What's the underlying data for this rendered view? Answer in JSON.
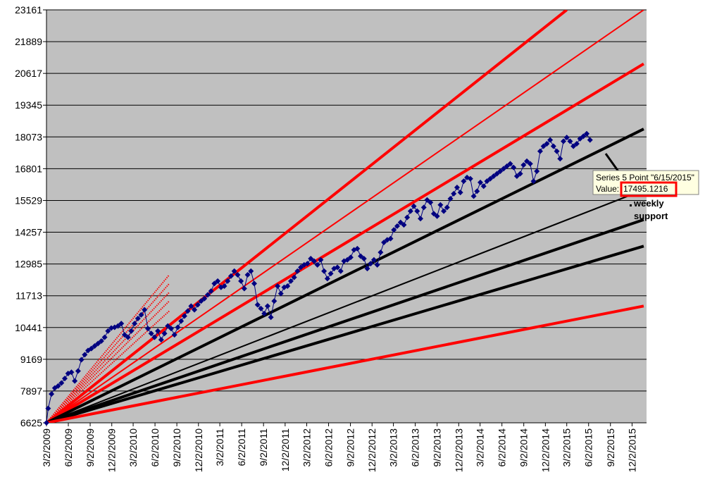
{
  "chart_data": {
    "type": "line",
    "title": "",
    "xlabel": "",
    "ylabel": "",
    "ylim": [
      6625,
      23161
    ],
    "xlim": [
      "3/2/2009",
      "2/1/2016"
    ],
    "y_ticks": [
      "6625",
      "7897",
      "9169",
      "10441",
      "11713",
      "12985",
      "14257",
      "15529",
      "16801",
      "18073",
      "19345",
      "20617",
      "21889",
      "23161"
    ],
    "x_ticks": [
      "3/2/2009",
      "6/2/2009",
      "9/2/2009",
      "12/2/2009",
      "3/2/2010",
      "6/2/2010",
      "9/2/2010",
      "12/2/2010",
      "3/2/2011",
      "6/2/2011",
      "9/2/2011",
      "12/2/2011",
      "3/2/2012",
      "6/2/2012",
      "9/2/2012",
      "12/2/2012",
      "3/2/2013",
      "6/2/2013",
      "9/2/2013",
      "12/2/2013",
      "3/2/2014",
      "6/2/2014",
      "9/2/2014",
      "12/2/2014",
      "3/2/2015",
      "6/2/2015",
      "9/2/2015",
      "12/2/2015"
    ],
    "plot_background": "#c0c0c0",
    "grid": "horizontal",
    "legend": "none",
    "series_color": "#000080",
    "series": [
      {
        "values": [
          [
            "3/2/2009",
            6625
          ],
          [
            "3/9/2009",
            7200
          ],
          [
            "3/23/2009",
            7780
          ],
          [
            "4/6/2009",
            8020
          ],
          [
            "4/20/2009",
            8100
          ],
          [
            "5/4/2009",
            8220
          ],
          [
            "5/18/2009",
            8400
          ],
          [
            "6/1/2009",
            8600
          ],
          [
            "6/15/2009",
            8650
          ],
          [
            "6/29/2009",
            8300
          ],
          [
            "7/13/2009",
            8700
          ],
          [
            "7/27/2009",
            9150
          ],
          [
            "8/10/2009",
            9350
          ],
          [
            "8/24/2009",
            9520
          ],
          [
            "9/7/2009",
            9600
          ],
          [
            "9/21/2009",
            9700
          ],
          [
            "10/5/2009",
            9800
          ],
          [
            "10/19/2009",
            9900
          ],
          [
            "11/2/2009",
            10050
          ],
          [
            "11/16/2009",
            10300
          ],
          [
            "11/30/2009",
            10420
          ],
          [
            "12/14/2009",
            10450
          ],
          [
            "12/28/2009",
            10500
          ],
          [
            "1/11/2010",
            10600
          ],
          [
            "1/25/2010",
            10150
          ],
          [
            "2/8/2010",
            10050
          ],
          [
            "2/22/2010",
            10300
          ],
          [
            "3/8/2010",
            10600
          ],
          [
            "3/22/2010",
            10800
          ],
          [
            "4/5/2010",
            10950
          ],
          [
            "4/19/2010",
            11150
          ],
          [
            "5/3/2010",
            10400
          ],
          [
            "5/17/2010",
            10200
          ],
          [
            "5/31/2010",
            10050
          ],
          [
            "6/14/2010",
            10300
          ],
          [
            "6/28/2010",
            9950
          ],
          [
            "7/12/2010",
            10200
          ],
          [
            "7/26/2010",
            10500
          ],
          [
            "8/9/2010",
            10400
          ],
          [
            "8/23/2010",
            10150
          ],
          [
            "9/6/2010",
            10450
          ],
          [
            "9/20/2010",
            10700
          ],
          [
            "10/4/2010",
            10900
          ],
          [
            "10/18/2010",
            11100
          ],
          [
            "11/1/2010",
            11300
          ],
          [
            "11/15/2010",
            11150
          ],
          [
            "11/29/2010",
            11350
          ],
          [
            "12/13/2010",
            11500
          ],
          [
            "12/27/2010",
            11600
          ],
          [
            "1/10/2011",
            11750
          ],
          [
            "1/24/2011",
            11900
          ],
          [
            "2/7/2011",
            12200
          ],
          [
            "2/21/2011",
            12300
          ],
          [
            "3/7/2011",
            12050
          ],
          [
            "3/21/2011",
            12100
          ],
          [
            "4/4/2011",
            12300
          ],
          [
            "4/18/2011",
            12500
          ],
          [
            "5/2/2011",
            12700
          ],
          [
            "5/16/2011",
            12550
          ],
          [
            "5/30/2011",
            12300
          ],
          [
            "6/13/2011",
            12000
          ],
          [
            "6/27/2011",
            12550
          ],
          [
            "7/11/2011",
            12700
          ],
          [
            "7/25/2011",
            12200
          ],
          [
            "8/8/2011",
            11350
          ],
          [
            "8/22/2011",
            11200
          ],
          [
            "9/5/2011",
            11000
          ],
          [
            "9/19/2011",
            11300
          ],
          [
            "10/3/2011",
            10850
          ],
          [
            "10/17/2011",
            11500
          ],
          [
            "10/31/2011",
            12100
          ],
          [
            "11/14/2011",
            11800
          ],
          [
            "11/28/2011",
            12050
          ],
          [
            "12/12/2011",
            12100
          ],
          [
            "12/26/2011",
            12300
          ],
          [
            "1/9/2012",
            12450
          ],
          [
            "1/23/2012",
            12700
          ],
          [
            "2/6/2012",
            12850
          ],
          [
            "2/20/2012",
            12950
          ],
          [
            "3/5/2012",
            13000
          ],
          [
            "3/19/2012",
            13200
          ],
          [
            "4/2/2012",
            13100
          ],
          [
            "4/16/2012",
            12950
          ],
          [
            "4/30/2012",
            13150
          ],
          [
            "5/14/2012",
            12700
          ],
          [
            "5/28/2012",
            12400
          ],
          [
            "6/11/2012",
            12600
          ],
          [
            "6/25/2012",
            12800
          ],
          [
            "7/9/2012",
            12850
          ],
          [
            "7/23/2012",
            12700
          ],
          [
            "8/6/2012",
            13100
          ],
          [
            "8/20/2012",
            13150
          ],
          [
            "9/3/2012",
            13250
          ],
          [
            "9/17/2012",
            13550
          ],
          [
            "10/1/2012",
            13600
          ],
          [
            "10/15/2012",
            13300
          ],
          [
            "10/29/2012",
            13200
          ],
          [
            "11/12/2012",
            12800
          ],
          [
            "11/26/2012",
            13000
          ],
          [
            "12/10/2012",
            13150
          ],
          [
            "12/24/2012",
            12950
          ],
          [
            "1/7/2013",
            13450
          ],
          [
            "1/21/2013",
            13850
          ],
          [
            "2/4/2013",
            13950
          ],
          [
            "2/18/2013",
            14000
          ],
          [
            "3/4/2013",
            14350
          ],
          [
            "3/18/2013",
            14500
          ],
          [
            "4/1/2013",
            14650
          ],
          [
            "4/15/2013",
            14550
          ],
          [
            "4/29/2013",
            14850
          ],
          [
            "5/13/2013",
            15100
          ],
          [
            "5/27/2013",
            15300
          ],
          [
            "6/10/2013",
            15100
          ],
          [
            "6/24/2013",
            14800
          ],
          [
            "7/8/2013",
            15250
          ],
          [
            "7/22/2013",
            15550
          ],
          [
            "8/5/2013",
            15450
          ],
          [
            "8/19/2013",
            15000
          ],
          [
            "9/2/2013",
            14900
          ],
          [
            "9/16/2013",
            15350
          ],
          [
            "9/30/2013",
            15100
          ],
          [
            "10/14/2013",
            15250
          ],
          [
            "10/28/2013",
            15600
          ],
          [
            "11/11/2013",
            15800
          ],
          [
            "11/25/2013",
            16050
          ],
          [
            "12/9/2013",
            15850
          ],
          [
            "12/23/2013",
            16300
          ],
          [
            "1/6/2014",
            16450
          ],
          [
            "1/20/2014",
            16400
          ],
          [
            "2/3/2014",
            15700
          ],
          [
            "2/17/2014",
            15900
          ],
          [
            "3/3/2014",
            16250
          ],
          [
            "3/17/2014",
            16100
          ],
          [
            "3/31/2014",
            16300
          ],
          [
            "4/14/2014",
            16400
          ],
          [
            "4/28/2014",
            16500
          ],
          [
            "5/12/2014",
            16600
          ],
          [
            "5/26/2014",
            16700
          ],
          [
            "6/9/2014",
            16800
          ],
          [
            "6/23/2014",
            16900
          ],
          [
            "7/7/2014",
            17000
          ],
          [
            "7/21/2014",
            16850
          ],
          [
            "8/4/2014",
            16500
          ],
          [
            "8/18/2014",
            16600
          ],
          [
            "9/1/2014",
            16950
          ],
          [
            "9/15/2014",
            17100
          ],
          [
            "9/29/2014",
            17000
          ],
          [
            "10/13/2014",
            16300
          ],
          [
            "10/27/2014",
            16700
          ],
          [
            "11/10/2014",
            17500
          ],
          [
            "11/24/2014",
            17700
          ],
          [
            "12/8/2014",
            17800
          ],
          [
            "12/22/2014",
            17950
          ],
          [
            "1/5/2015",
            17700
          ],
          [
            "1/19/2015",
            17500
          ],
          [
            "2/2/2015",
            17200
          ],
          [
            "2/16/2015",
            17900
          ],
          [
            "3/2/2015",
            18050
          ],
          [
            "3/16/2015",
            17900
          ],
          [
            "3/30/2015",
            17700
          ],
          [
            "4/13/2015",
            17800
          ],
          [
            "4/27/2015",
            18000
          ],
          [
            "5/11/2015",
            18100
          ],
          [
            "5/25/2015",
            18200
          ],
          [
            "6/8/2015",
            17950
          ]
        ]
      }
    ],
    "trendlines": [
      {
        "color": "#ff0000",
        "weight": "heavy",
        "from": [
          "3/2/2009",
          6625
        ],
        "to": [
          "3/2/2015",
          23161
        ]
      },
      {
        "color": "#ff0000",
        "weight": "thin",
        "from": [
          "3/2/2009",
          6625
        ],
        "to": [
          "1/20/2016",
          23161
        ]
      },
      {
        "color": "#ff0000",
        "weight": "heavy",
        "from": [
          "3/2/2009",
          6625
        ],
        "to": [
          "1/20/2016",
          21000
        ]
      },
      {
        "color": "#000000",
        "weight": "heavy",
        "from": [
          "3/2/2009",
          6625
        ],
        "to": [
          "1/20/2016",
          18390
        ]
      },
      {
        "color": "#000000",
        "weight": "thin",
        "from": [
          "3/2/2009",
          6625
        ],
        "to": [
          "1/20/2016",
          15950
        ]
      },
      {
        "color": "#000000",
        "weight": "heavy",
        "from": [
          "3/2/2009",
          6625
        ],
        "to": [
          "1/20/2016",
          14760
        ]
      },
      {
        "color": "#000000",
        "weight": "heavy",
        "from": [
          "3/2/2009",
          6625
        ],
        "to": [
          "1/20/2016",
          13700
        ]
      },
      {
        "color": "#ff0000",
        "weight": "heavy",
        "from": [
          "3/2/2009",
          6625
        ],
        "to": [
          "1/20/2016",
          11300
        ]
      }
    ],
    "short_fan": {
      "color": "#ff0000",
      "end_date": "8/1/2010",
      "end_values": [
        12550,
        12200,
        11850,
        11500,
        11100
      ]
    },
    "annotation": "weekly\nsupport",
    "tooltip": {
      "line1": "Series 5 Point \"6/15/2015\"",
      "label": "Value:",
      "value": "17495.1216"
    }
  }
}
